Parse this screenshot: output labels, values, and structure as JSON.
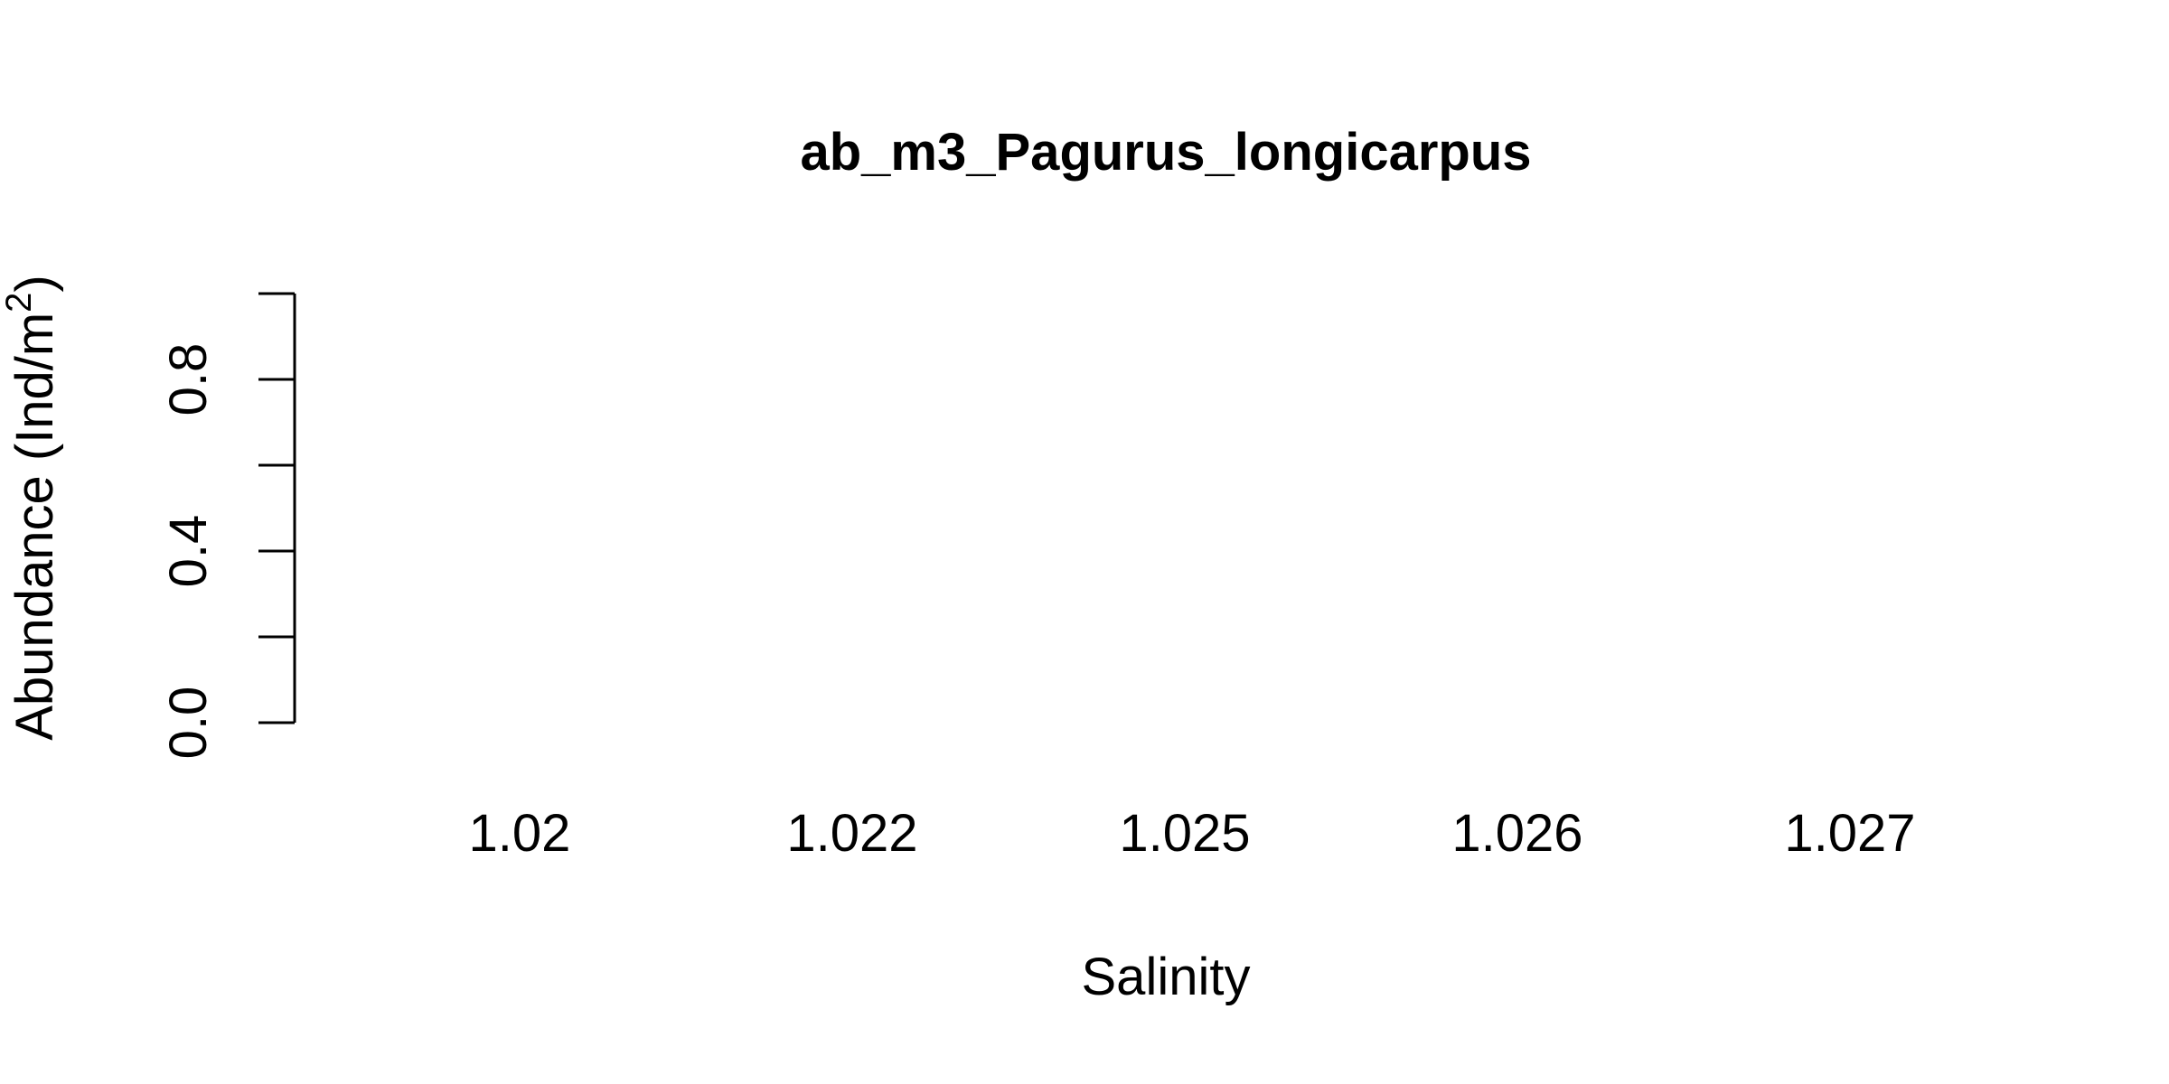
{
  "chart_data": {
    "type": "bar",
    "title": "ab_m3_Pagurus_longicarpus",
    "xlabel": "Salinity",
    "ylabel": "Abundance (Ind/m",
    "ylabel_superscript": "2",
    "ylabel_suffix": ")",
    "categories": [
      "1.02",
      "1.022",
      "1.025",
      "1.026",
      "1.027"
    ],
    "values": [
      0,
      0,
      0,
      0,
      0
    ],
    "ylim": [
      0,
      1
    ],
    "yticks": [
      "0.0",
      "0.4",
      "0.8"
    ],
    "grid": false
  }
}
